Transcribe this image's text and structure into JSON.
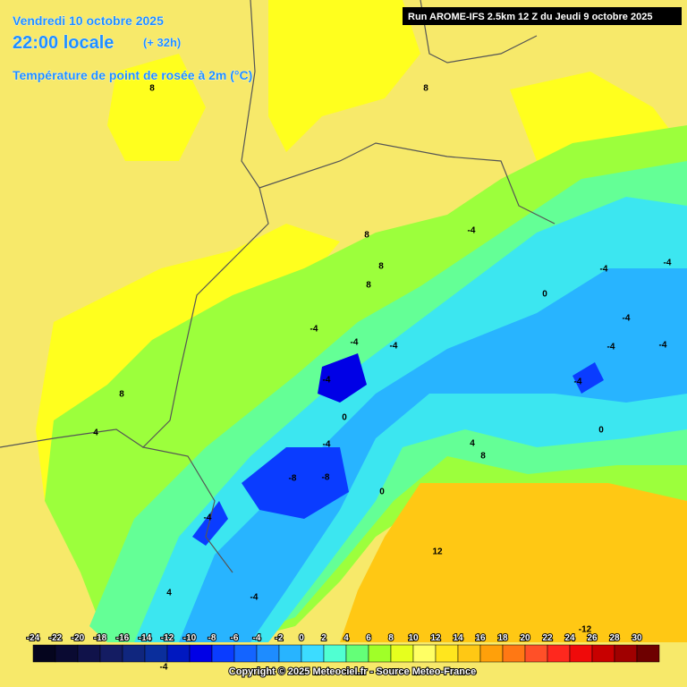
{
  "header": {
    "date": "Vendredi 10 octobre 2025",
    "time": "22:00 locale",
    "offset": "(+ 32h)",
    "parameter": "Température de point de rosée à 2m (°C)",
    "run": "Run AROME-IFS 2.5km 12 Z du Jeudi 9 octobre 2025"
  },
  "contour_labels": [
    8,
    8,
    8,
    -4,
    8,
    8,
    -4,
    -4,
    0,
    -4,
    -4,
    -4,
    -4,
    -4,
    -4,
    -4,
    -4,
    8,
    0,
    4,
    0,
    -4,
    4,
    8,
    -8,
    -8,
    0,
    -4,
    12,
    4,
    -4,
    -12,
    -4
  ],
  "legend": {
    "ticks": [
      -24,
      -22,
      -20,
      -18,
      -16,
      -14,
      -12,
      -10,
      -8,
      -6,
      -4,
      -2,
      0,
      2,
      4,
      6,
      8,
      10,
      12,
      14,
      16,
      18,
      20,
      22,
      24,
      26,
      28,
      30
    ],
    "colors": [
      "#05051e",
      "#0a0a32",
      "#10124a",
      "#141c62",
      "#10267e",
      "#0a2e9c",
      "#0018c0",
      "#0000e6",
      "#0a3cff",
      "#1464ff",
      "#1e8cff",
      "#28b4ff",
      "#3cdcff",
      "#50ffd2",
      "#64ff78",
      "#a0ff28",
      "#e6ff1e",
      "#ffff64",
      "#ffe61e",
      "#ffc814",
      "#ffa00a",
      "#ff7814",
      "#ff5028",
      "#ff281e",
      "#f00a0a",
      "#c80000",
      "#a00000",
      "#6e0000"
    ]
  },
  "footer": {
    "copyright": "Copyright © 2025 Meteociel.fr - Source Meteo-France"
  }
}
